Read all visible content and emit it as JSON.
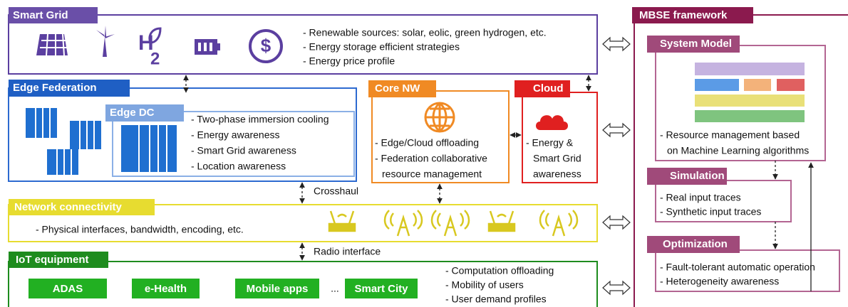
{
  "smart_grid": {
    "title": "Smart Grid",
    "hydrogen_icon": {
      "symbol": "H",
      "subscript": "2"
    },
    "bullets": [
      "- Renewable sources: solar, eolic, green hydrogen, etc.",
      "- Energy storage efficient strategies",
      "- Energy price profile"
    ]
  },
  "edge_federation": {
    "title": "Edge Federation"
  },
  "edge_dc": {
    "title": "Edge DC",
    "bullets": [
      "- Two-phase immersion cooling",
      "- Energy awareness",
      "- Smart Grid awareness",
      "- Location awareness"
    ]
  },
  "core_nw": {
    "title": "Core NW",
    "bullets": [
      "- Edge/Cloud offloading",
      "- Federation collaborative",
      "resource management"
    ]
  },
  "cloud": {
    "title": "Cloud",
    "bullets": [
      "- Energy &",
      "Smart Grid",
      "awareness"
    ]
  },
  "crosshaul": "Crosshaul",
  "network": {
    "title": "Network connectivity",
    "bullets": [
      "- Physical interfaces, bandwidth, encoding, etc."
    ]
  },
  "radio": "Radio interface",
  "iot": {
    "title": "IoT equipment",
    "apps": [
      "ADAS",
      "e-Health",
      "Mobile apps",
      "...",
      "Smart City"
    ],
    "bullets": [
      "- Computation offloading",
      "- Mobility of users",
      "- User demand profiles"
    ]
  },
  "mbse": {
    "title": "MBSE framework",
    "system_model": {
      "title": "System Model",
      "bullets": [
        "- Resource management based",
        "on Machine Learning algorithms"
      ]
    },
    "simulation": {
      "title": "Simulation",
      "bullets": [
        "- Real input traces",
        "- Synthetic input traces"
      ]
    },
    "optimization": {
      "title": "Optimization",
      "bullets": [
        "- Fault-tolerant automatic operation",
        "- Heterogeneity awareness"
      ]
    }
  }
}
